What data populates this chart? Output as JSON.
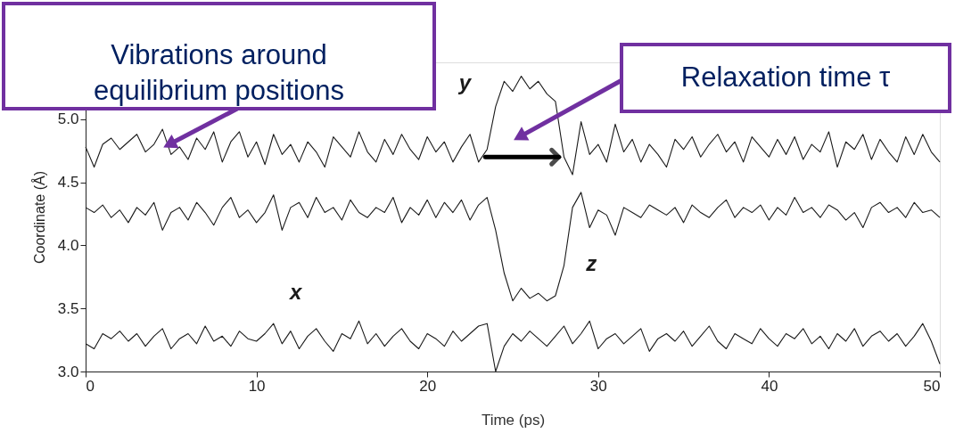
{
  "chart_data": {
    "type": "line",
    "xlabel": "Time (ps)",
    "ylabel": "Coordinate (Å)",
    "x": [
      0,
      0.5,
      1,
      1.5,
      2,
      2.5,
      3,
      3.5,
      4,
      4.5,
      5,
      5.5,
      6,
      6.5,
      7,
      7.5,
      8,
      8.5,
      9,
      9.5,
      10,
      10.5,
      11,
      11.5,
      12,
      12.5,
      13,
      13.5,
      14,
      14.5,
      15,
      15.5,
      16,
      16.5,
      17,
      17.5,
      18,
      18.5,
      19,
      19.5,
      20,
      20.5,
      21,
      21.5,
      22,
      22.5,
      23,
      23.5,
      24,
      24.5,
      25,
      25.5,
      26,
      26.5,
      27,
      27.5,
      28,
      28.5,
      29,
      29.5,
      30,
      30.5,
      31,
      31.5,
      32,
      32.5,
      33,
      33.5,
      34,
      34.5,
      35,
      35.5,
      36,
      36.5,
      37,
      37.5,
      38,
      38.5,
      39,
      39.5,
      40,
      40.5,
      41,
      41.5,
      42,
      42.5,
      43,
      43.5,
      44,
      44.5,
      45,
      45.5,
      46,
      46.5,
      47,
      47.5,
      48,
      48.5,
      49,
      49.5,
      50
    ],
    "series": [
      {
        "name": "x",
        "color": "#1a1a1a",
        "values": [
          3.22,
          3.18,
          3.3,
          3.26,
          3.32,
          3.24,
          3.3,
          3.2,
          3.28,
          3.34,
          3.18,
          3.26,
          3.3,
          3.22,
          3.36,
          3.24,
          3.28,
          3.2,
          3.32,
          3.26,
          3.24,
          3.3,
          3.38,
          3.22,
          3.32,
          3.18,
          3.28,
          3.34,
          3.24,
          3.16,
          3.3,
          3.26,
          3.4,
          3.22,
          3.3,
          3.2,
          3.28,
          3.34,
          3.24,
          3.18,
          3.3,
          3.26,
          3.2,
          3.32,
          3.24,
          3.3,
          3.36,
          3.38,
          3.0,
          3.2,
          3.3,
          3.24,
          3.32,
          3.26,
          3.2,
          3.28,
          3.36,
          3.22,
          3.3,
          3.4,
          3.18,
          3.26,
          3.3,
          3.22,
          3.28,
          3.34,
          3.16,
          3.26,
          3.3,
          3.24,
          3.32,
          3.2,
          3.28,
          3.36,
          3.24,
          3.18,
          3.3,
          3.26,
          3.22,
          3.34,
          3.26,
          3.2,
          3.3,
          3.26,
          3.34,
          3.22,
          3.28,
          3.18,
          3.3,
          3.24,
          3.34,
          3.2,
          3.28,
          3.32,
          3.24,
          3.3,
          3.2,
          3.28,
          3.38,
          3.24,
          3.06
        ]
      },
      {
        "name": "y",
        "color": "#1a1a1a",
        "values": [
          4.78,
          4.62,
          4.8,
          4.85,
          4.76,
          4.82,
          4.88,
          4.74,
          4.8,
          4.92,
          4.72,
          4.78,
          4.68,
          4.85,
          4.76,
          4.9,
          4.66,
          4.82,
          4.9,
          4.7,
          4.82,
          4.64,
          4.88,
          4.72,
          4.8,
          4.66,
          4.82,
          4.74,
          4.62,
          4.86,
          4.78,
          4.7,
          4.9,
          4.74,
          4.66,
          4.84,
          4.72,
          4.88,
          4.76,
          4.68,
          4.86,
          4.74,
          4.82,
          4.66,
          4.78,
          4.88,
          4.66,
          4.76,
          5.1,
          5.3,
          5.22,
          5.34,
          5.24,
          5.3,
          5.2,
          5.14,
          4.7,
          4.56,
          4.98,
          4.72,
          4.8,
          4.66,
          4.96,
          4.74,
          4.84,
          4.66,
          4.8,
          4.72,
          4.62,
          4.84,
          4.76,
          4.86,
          4.7,
          4.8,
          4.88,
          4.74,
          4.82,
          4.66,
          4.86,
          4.78,
          4.7,
          4.84,
          4.72,
          4.86,
          4.68,
          4.8,
          4.74,
          4.9,
          4.62,
          4.82,
          4.76,
          4.88,
          4.68,
          4.84,
          4.74,
          4.66,
          4.86,
          4.72,
          4.88,
          4.74,
          4.66
        ]
      },
      {
        "name": "z",
        "color": "#1a1a1a",
        "values": [
          4.3,
          4.26,
          4.32,
          4.22,
          4.28,
          4.18,
          4.3,
          4.24,
          4.34,
          4.12,
          4.26,
          4.3,
          4.2,
          4.34,
          4.26,
          4.16,
          4.3,
          4.38,
          4.22,
          4.28,
          4.18,
          4.26,
          4.4,
          4.12,
          4.3,
          4.34,
          4.22,
          4.38,
          4.26,
          4.3,
          4.2,
          4.36,
          4.26,
          4.22,
          4.3,
          4.26,
          4.38,
          4.18,
          4.3,
          4.24,
          4.36,
          4.22,
          4.34,
          4.26,
          4.36,
          4.2,
          4.32,
          4.38,
          4.12,
          3.78,
          3.56,
          3.66,
          3.58,
          3.62,
          3.56,
          3.6,
          3.84,
          4.3,
          4.42,
          4.14,
          4.28,
          4.24,
          4.08,
          4.3,
          4.26,
          4.22,
          4.32,
          4.28,
          4.24,
          4.3,
          4.18,
          4.32,
          4.26,
          4.22,
          4.3,
          4.36,
          4.22,
          4.3,
          4.26,
          4.32,
          4.2,
          4.3,
          4.24,
          4.38,
          4.26,
          4.3,
          4.22,
          4.32,
          4.28,
          4.2,
          4.26,
          4.14,
          4.3,
          4.34,
          4.26,
          4.3,
          4.22,
          4.34,
          4.26,
          4.28,
          4.22
        ]
      }
    ],
    "xlim": [
      0,
      50
    ],
    "xticks": [
      0,
      10,
      20,
      30,
      40,
      50
    ],
    "ylim": [
      3.0,
      5.45
    ],
    "yticks": [
      {
        "value": 3.0,
        "label": "3.0"
      },
      {
        "value": 3.5,
        "label": "3.5"
      },
      {
        "value": 4.0,
        "label": "4.0"
      },
      {
        "value": 4.5,
        "label": "4.5"
      },
      {
        "value": 5.0,
        "label": "5.0"
      }
    ],
    "annotations": [
      "Vibrations around equilibrium positions",
      "Relaxation time τ"
    ],
    "grid": false,
    "marker": "none",
    "line_style": "solid"
  }
}
